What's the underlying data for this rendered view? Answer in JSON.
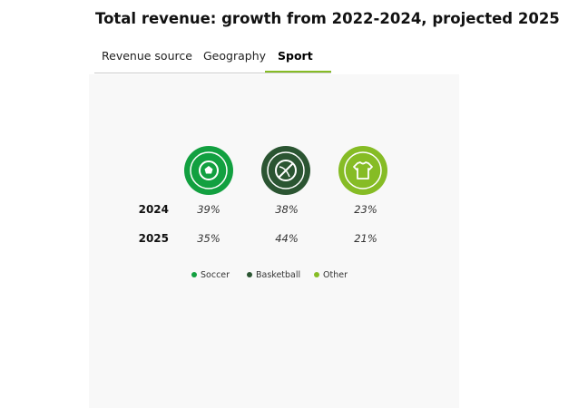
{
  "header": {
    "title": "Total revenue: growth from 2022-2024, projected 2025"
  },
  "tabs": [
    "Revenue source",
    "Geography",
    "Sport"
  ],
  "table": {
    "columns": [
      "Soccer",
      "Basketball",
      "Other"
    ],
    "rows": [
      [
        "2024",
        "39%",
        "38%",
        "23%"
      ],
      [
        "2025",
        "35%",
        "44%",
        "21%"
      ]
    ]
  }
}
